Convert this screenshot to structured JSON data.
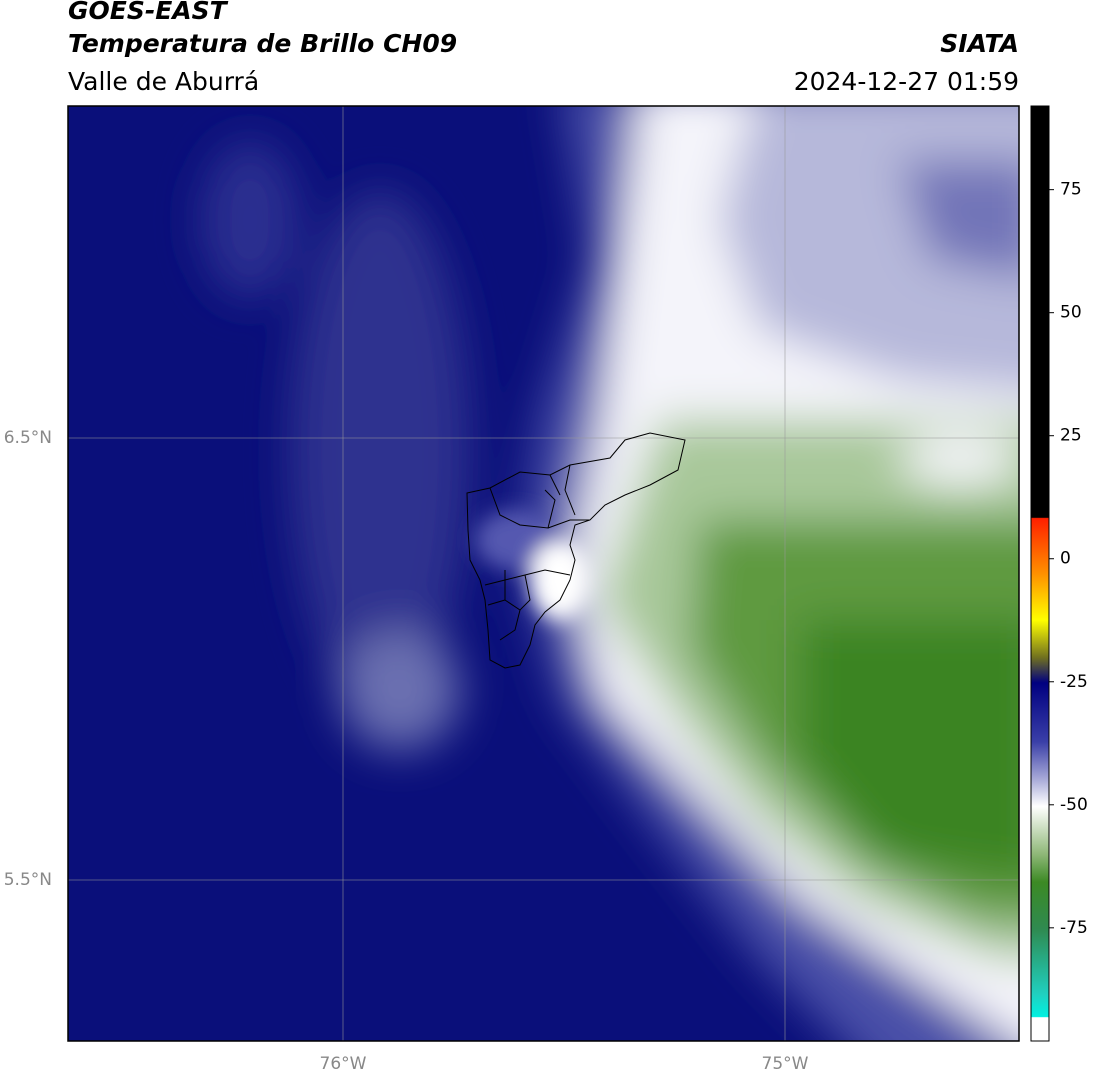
{
  "header": {
    "title": "GOES-EAST",
    "subtitle": "Temperatura de Brillo CH09",
    "region": "Valle de Aburrá",
    "source": "SIATA",
    "datetime": "2024-12-27 01:59"
  },
  "map": {
    "lat_labels": [
      "6.5°N",
      "5.5°N"
    ],
    "lon_labels": [
      "76°W",
      "75°W"
    ]
  },
  "colorbar": {
    "range": [
      -98,
      92
    ],
    "ticks": [
      75,
      50,
      25,
      0,
      -25,
      -50,
      -75
    ]
  }
}
